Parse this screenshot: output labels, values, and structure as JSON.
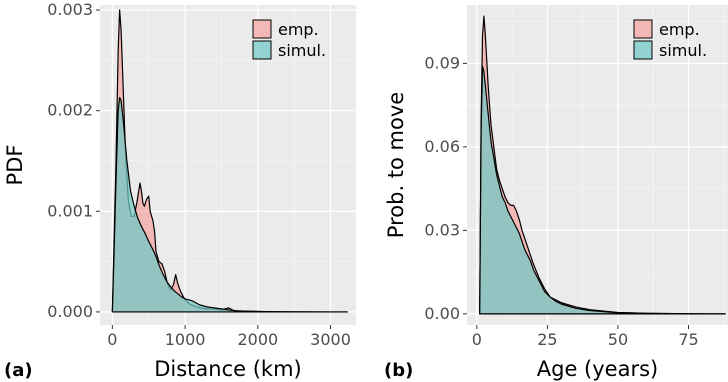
{
  "colors": {
    "panel_bg": "#ebebeb",
    "grid_major": "#ffffff",
    "grid_minor": "#f5f5f5",
    "emp_fill": "#f4a3a0",
    "simul_fill": "#6fc9c6",
    "outline": "#000000"
  },
  "chart_data": [
    {
      "type": "area",
      "panel_label": "(a)",
      "xlabel": "Distance (km)",
      "ylabel": "PDF",
      "xlim": [
        -170,
        3350
      ],
      "ylim": [
        -0.00013,
        0.00305
      ],
      "xticks": [
        0,
        1000,
        2000,
        3000
      ],
      "xtick_labels": [
        "0",
        "1000",
        "2000",
        "3000"
      ],
      "yticks": [
        0.0,
        0.001,
        0.002,
        0.003
      ],
      "ytick_labels": [
        "0.000",
        "0.001",
        "0.002",
        "0.003"
      ],
      "legend": {
        "placement": "top-right",
        "entries": [
          "emp.",
          "simul."
        ]
      },
      "grid": true,
      "series": [
        {
          "name": "emp.",
          "x": [
            0,
            20,
            50,
            80,
            100,
            120,
            150,
            180,
            220,
            260,
            300,
            340,
            380,
            400,
            420,
            440,
            470,
            500,
            520,
            540,
            560,
            580,
            600,
            640,
            680,
            720,
            760,
            800,
            840,
            870,
            900,
            940,
            1000,
            1060,
            1120,
            1200,
            1300,
            1400,
            1500,
            1600,
            1650,
            1700,
            1800,
            1900,
            2000,
            2200,
            2500,
            3000,
            3230
          ],
          "y": [
            0,
            0.0006,
            0.0015,
            0.0026,
            0.003,
            0.0028,
            0.0022,
            0.0016,
            0.0011,
            0.00095,
            0.00095,
            0.0011,
            0.00128,
            0.0012,
            0.00108,
            0.00105,
            0.00112,
            0.00115,
            0.001,
            0.00095,
            0.0009,
            0.0008,
            0.0006,
            0.0005,
            0.00048,
            0.0004,
            0.00027,
            0.00022,
            0.00027,
            0.00037,
            0.00028,
            0.0002,
            0.00012,
            8e-05,
            6e-05,
            4e-05,
            3e-05,
            3e-05,
            2e-05,
            4e-05,
            2e-05,
            1e-05,
            8e-06,
            6e-06,
            4e-06,
            2e-06,
            1e-06,
            0,
            0
          ]
        },
        {
          "name": "simul.",
          "x": [
            0,
            20,
            50,
            80,
            100,
            120,
            150,
            200,
            250,
            300,
            350,
            400,
            450,
            500,
            550,
            600,
            650,
            700,
            750,
            800,
            850,
            900,
            950,
            1000,
            1050,
            1100,
            1150,
            1200,
            1300,
            1400,
            1500,
            1600,
            1700,
            1800,
            2000,
            2200,
            2500,
            3000,
            3230
          ],
          "y": [
            0,
            0.0005,
            0.0013,
            0.002,
            0.00213,
            0.0021,
            0.0019,
            0.0015,
            0.0012,
            0.00105,
            0.00093,
            0.00085,
            0.00078,
            0.0007,
            0.00063,
            0.00055,
            0.00045,
            0.00037,
            0.0003,
            0.00025,
            0.00021,
            0.00018,
            0.00015,
            0.00013,
            0.00012,
            0.00011,
            9e-05,
            7e-05,
            5e-05,
            4e-05,
            3e-05,
            2e-05,
            1e-05,
            8e-06,
            5e-06,
            2e-06,
            1e-06,
            0,
            0
          ]
        }
      ]
    },
    {
      "type": "area",
      "panel_label": "(b)",
      "xlabel": "Age (years)",
      "ylabel": "Prob. to move",
      "xlim": [
        -3.5,
        89
      ],
      "ylim": [
        -0.004,
        0.111
      ],
      "xticks": [
        0,
        25,
        50,
        75
      ],
      "xtick_labels": [
        "0",
        "25",
        "50",
        "75"
      ],
      "yticks": [
        0.0,
        0.03,
        0.06,
        0.09
      ],
      "ytick_labels": [
        "0.00",
        "0.03",
        "0.06",
        "0.09"
      ],
      "legend": {
        "placement": "top-right",
        "entries": [
          "emp.",
          "simul."
        ]
      },
      "grid": true,
      "series": [
        {
          "name": "emp.",
          "x": [
            1,
            1.5,
            2,
            2.5,
            3,
            4,
            5,
            6,
            7,
            8,
            9,
            10,
            11,
            12,
            13,
            14,
            15,
            16,
            17,
            18,
            19,
            20,
            22,
            24,
            26,
            28,
            30,
            35,
            40,
            45,
            50,
            60,
            70,
            80,
            88
          ],
          "y": [
            0,
            0.07,
            0.1,
            0.107,
            0.1,
            0.082,
            0.068,
            0.06,
            0.052,
            0.048,
            0.045,
            0.042,
            0.04,
            0.039,
            0.039,
            0.037,
            0.034,
            0.03,
            0.027,
            0.024,
            0.021,
            0.018,
            0.013,
            0.009,
            0.006,
            0.005,
            0.004,
            0.0025,
            0.0015,
            0.001,
            0.0005,
            0.0002,
            0.0001,
            0,
            0
          ]
        },
        {
          "name": "simul.",
          "x": [
            1,
            1.5,
            2,
            2.5,
            3,
            4,
            5,
            6,
            7,
            8,
            9,
            10,
            11,
            12,
            13,
            14,
            15,
            16,
            17,
            18,
            19,
            20,
            22,
            24,
            26,
            28,
            30,
            35,
            40,
            45,
            50,
            60,
            70,
            80,
            88
          ],
          "y": [
            0,
            0.065,
            0.089,
            0.087,
            0.082,
            0.072,
            0.062,
            0.056,
            0.05,
            0.046,
            0.042,
            0.04,
            0.037,
            0.035,
            0.033,
            0.031,
            0.029,
            0.026,
            0.023,
            0.021,
            0.019,
            0.016,
            0.012,
            0.008,
            0.006,
            0.0045,
            0.0035,
            0.002,
            0.0012,
            0.0008,
            0.0004,
            0.0002,
            0.0001,
            0,
            0
          ]
        }
      ]
    }
  ]
}
